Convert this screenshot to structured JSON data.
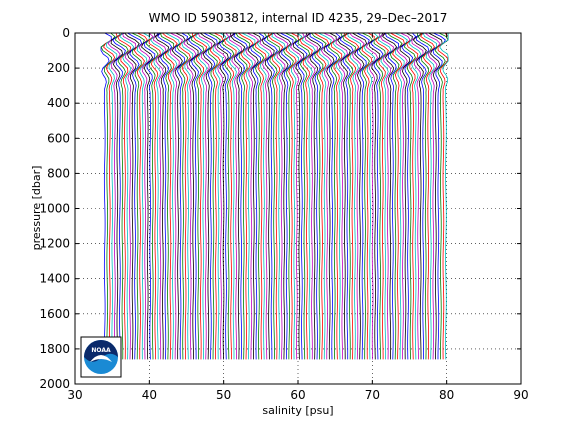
{
  "chart_data": {
    "type": "line",
    "title": "WMO ID 5903812, internal ID 4235, 29–Dec–2017",
    "xlabel": "salinity [psu]",
    "ylabel": "pressure [dbar]",
    "xlim": [
      30,
      90
    ],
    "ylim": [
      0,
      2000
    ],
    "y_reversed": true,
    "xticks": [
      30,
      40,
      50,
      60,
      70,
      80,
      90
    ],
    "yticks": [
      0,
      200,
      400,
      600,
      800,
      1000,
      1200,
      1400,
      1600,
      1800,
      2000
    ],
    "grid": "dotted",
    "profile_x_range": [
      34,
      80
    ],
    "profile_max_pressure": 1870,
    "series_colors": [
      "#0000ff",
      "#008000",
      "#ff0000",
      "#00bfbf",
      "#bf00bf",
      "#000000"
    ],
    "logo": {
      "text": "NOAA",
      "position": "bottom-left"
    }
  }
}
